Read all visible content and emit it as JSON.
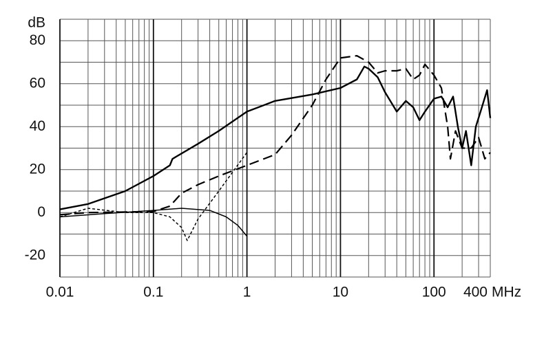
{
  "chart_data": {
    "type": "line",
    "x_label": "MHz",
    "y_label": "dB",
    "xscale": "log",
    "grid": true,
    "xlim": [
      0.01,
      400
    ],
    "ylim": [
      -30,
      90
    ],
    "xticks": [
      0.01,
      0.1,
      1,
      10,
      100,
      400
    ],
    "yticks": [
      -20,
      0,
      20,
      40,
      60,
      80
    ],
    "xgrid": [
      0.01,
      0.02,
      0.03,
      0.04,
      0.05,
      0.06,
      0.07,
      0.08,
      0.09,
      0.1,
      0.2,
      0.3,
      0.4,
      0.5,
      0.6,
      0.7,
      0.8,
      0.9,
      1,
      2,
      3,
      4,
      5,
      6,
      7,
      8,
      9,
      10,
      20,
      30,
      40,
      50,
      60,
      70,
      80,
      90,
      100,
      200,
      300,
      400
    ],
    "ygrid": [
      -30,
      -20,
      -10,
      0,
      10,
      20,
      30,
      40,
      50,
      60,
      70,
      80,
      90
    ],
    "series": [
      {
        "color": "#000000",
        "style": "solid",
        "width": 2.4,
        "x": [
          0.01,
          0.02,
          0.05,
          0.1,
          0.15,
          0.16,
          0.3,
          0.5,
          1,
          2,
          5,
          10,
          15,
          18,
          20,
          25,
          30,
          40,
          50,
          60,
          70,
          80,
          100,
          120,
          140,
          160,
          180,
          200,
          220,
          250,
          280,
          320,
          370,
          400
        ],
        "values": [
          1.5,
          4,
          10,
          17,
          22,
          25,
          32,
          38,
          47,
          52,
          55,
          58,
          62,
          68,
          67,
          63,
          56,
          47,
          52,
          49,
          43,
          47,
          53,
          54,
          49,
          54,
          40,
          30,
          38,
          22,
          40,
          48,
          57,
          44
        ]
      },
      {
        "color": "#000000",
        "style": "dashed",
        "width": 2.2,
        "x": [
          0.01,
          0.02,
          0.1,
          0.15,
          0.2,
          0.3,
          0.5,
          1,
          2,
          3,
          5,
          7,
          10,
          15,
          20,
          25,
          30,
          40,
          50,
          60,
          70,
          80,
          100,
          120,
          140,
          150,
          170,
          200,
          250,
          300,
          350,
          400
        ],
        "values": [
          -1,
          0,
          0.5,
          3,
          9,
          13,
          17,
          22,
          27,
          36,
          50,
          62,
          72,
          73,
          70,
          65,
          66,
          66,
          67,
          62,
          64,
          69,
          64,
          58,
          40,
          25,
          38,
          30,
          30,
          35,
          25,
          28
        ]
      },
      {
        "color": "#000000",
        "style": "dotted",
        "width": 1.5,
        "x": [
          0.01,
          0.02,
          0.05,
          0.1,
          0.15,
          0.2,
          0.23,
          0.3,
          0.5,
          1
        ],
        "values": [
          -2,
          2,
          0,
          0,
          -2,
          -7,
          -13,
          -3,
          10,
          28
        ]
      },
      {
        "color": "#000000",
        "style": "solid",
        "width": 1.5,
        "x": [
          0.01,
          0.03,
          0.1,
          0.2,
          0.4,
          0.6,
          0.8,
          1
        ],
        "values": [
          -2,
          -0.5,
          1,
          2,
          1,
          -2,
          -6,
          -11
        ]
      }
    ]
  }
}
